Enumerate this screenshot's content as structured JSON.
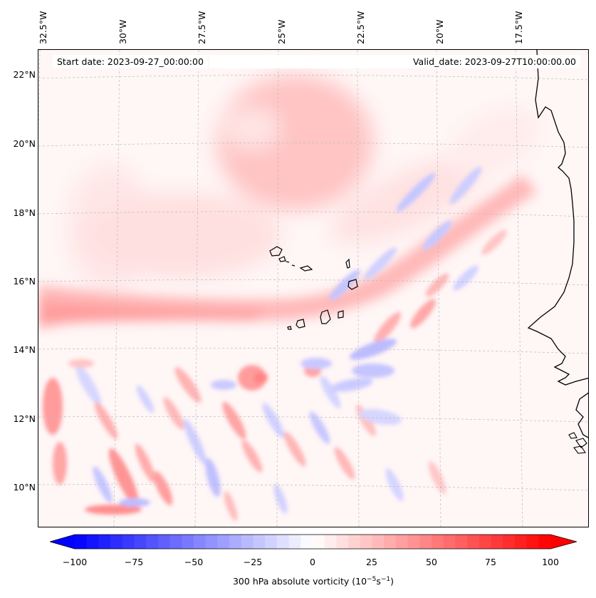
{
  "map": {
    "projection": "lambert-conformal",
    "start_date": "Start date: 2023-09-27_00:00:00",
    "valid_date": "Valid_date: 2023-09-27T10:00:00.00",
    "lon_labels": [
      "32.5°W",
      "30°W",
      "27.5°W",
      "25°W",
      "22.5°W",
      "20°W",
      "17.5°W"
    ],
    "lat_labels": [
      "22°N",
      "20°N",
      "18°N",
      "16°N",
      "14°N",
      "12°N",
      "10°N"
    ],
    "gridlines": true,
    "field": "300 hPa absolute vorticity",
    "colors": {
      "negative_max": "#0000ff",
      "zero": "#ffffff",
      "positive_max": "#ff0000",
      "coastline": "#000000",
      "gridline": "#bbbbbb"
    },
    "features": [
      "West African coastline (Mauritania, Senegal, Gambia, Guinea-Bissau)",
      "Cape Verde islands"
    ]
  },
  "colorbar": {
    "ticks": [
      "−100",
      "−75",
      "−50",
      "−25",
      "0",
      "25",
      "50",
      "75",
      "100"
    ],
    "label_prefix": "300 hPa absolute vorticity (10",
    "label_exp1": "−5",
    "label_mid": "s",
    "label_exp2": "−1",
    "label_suffix": ")",
    "range": [
      -100,
      100
    ],
    "levels": 40,
    "extend": "both"
  }
}
